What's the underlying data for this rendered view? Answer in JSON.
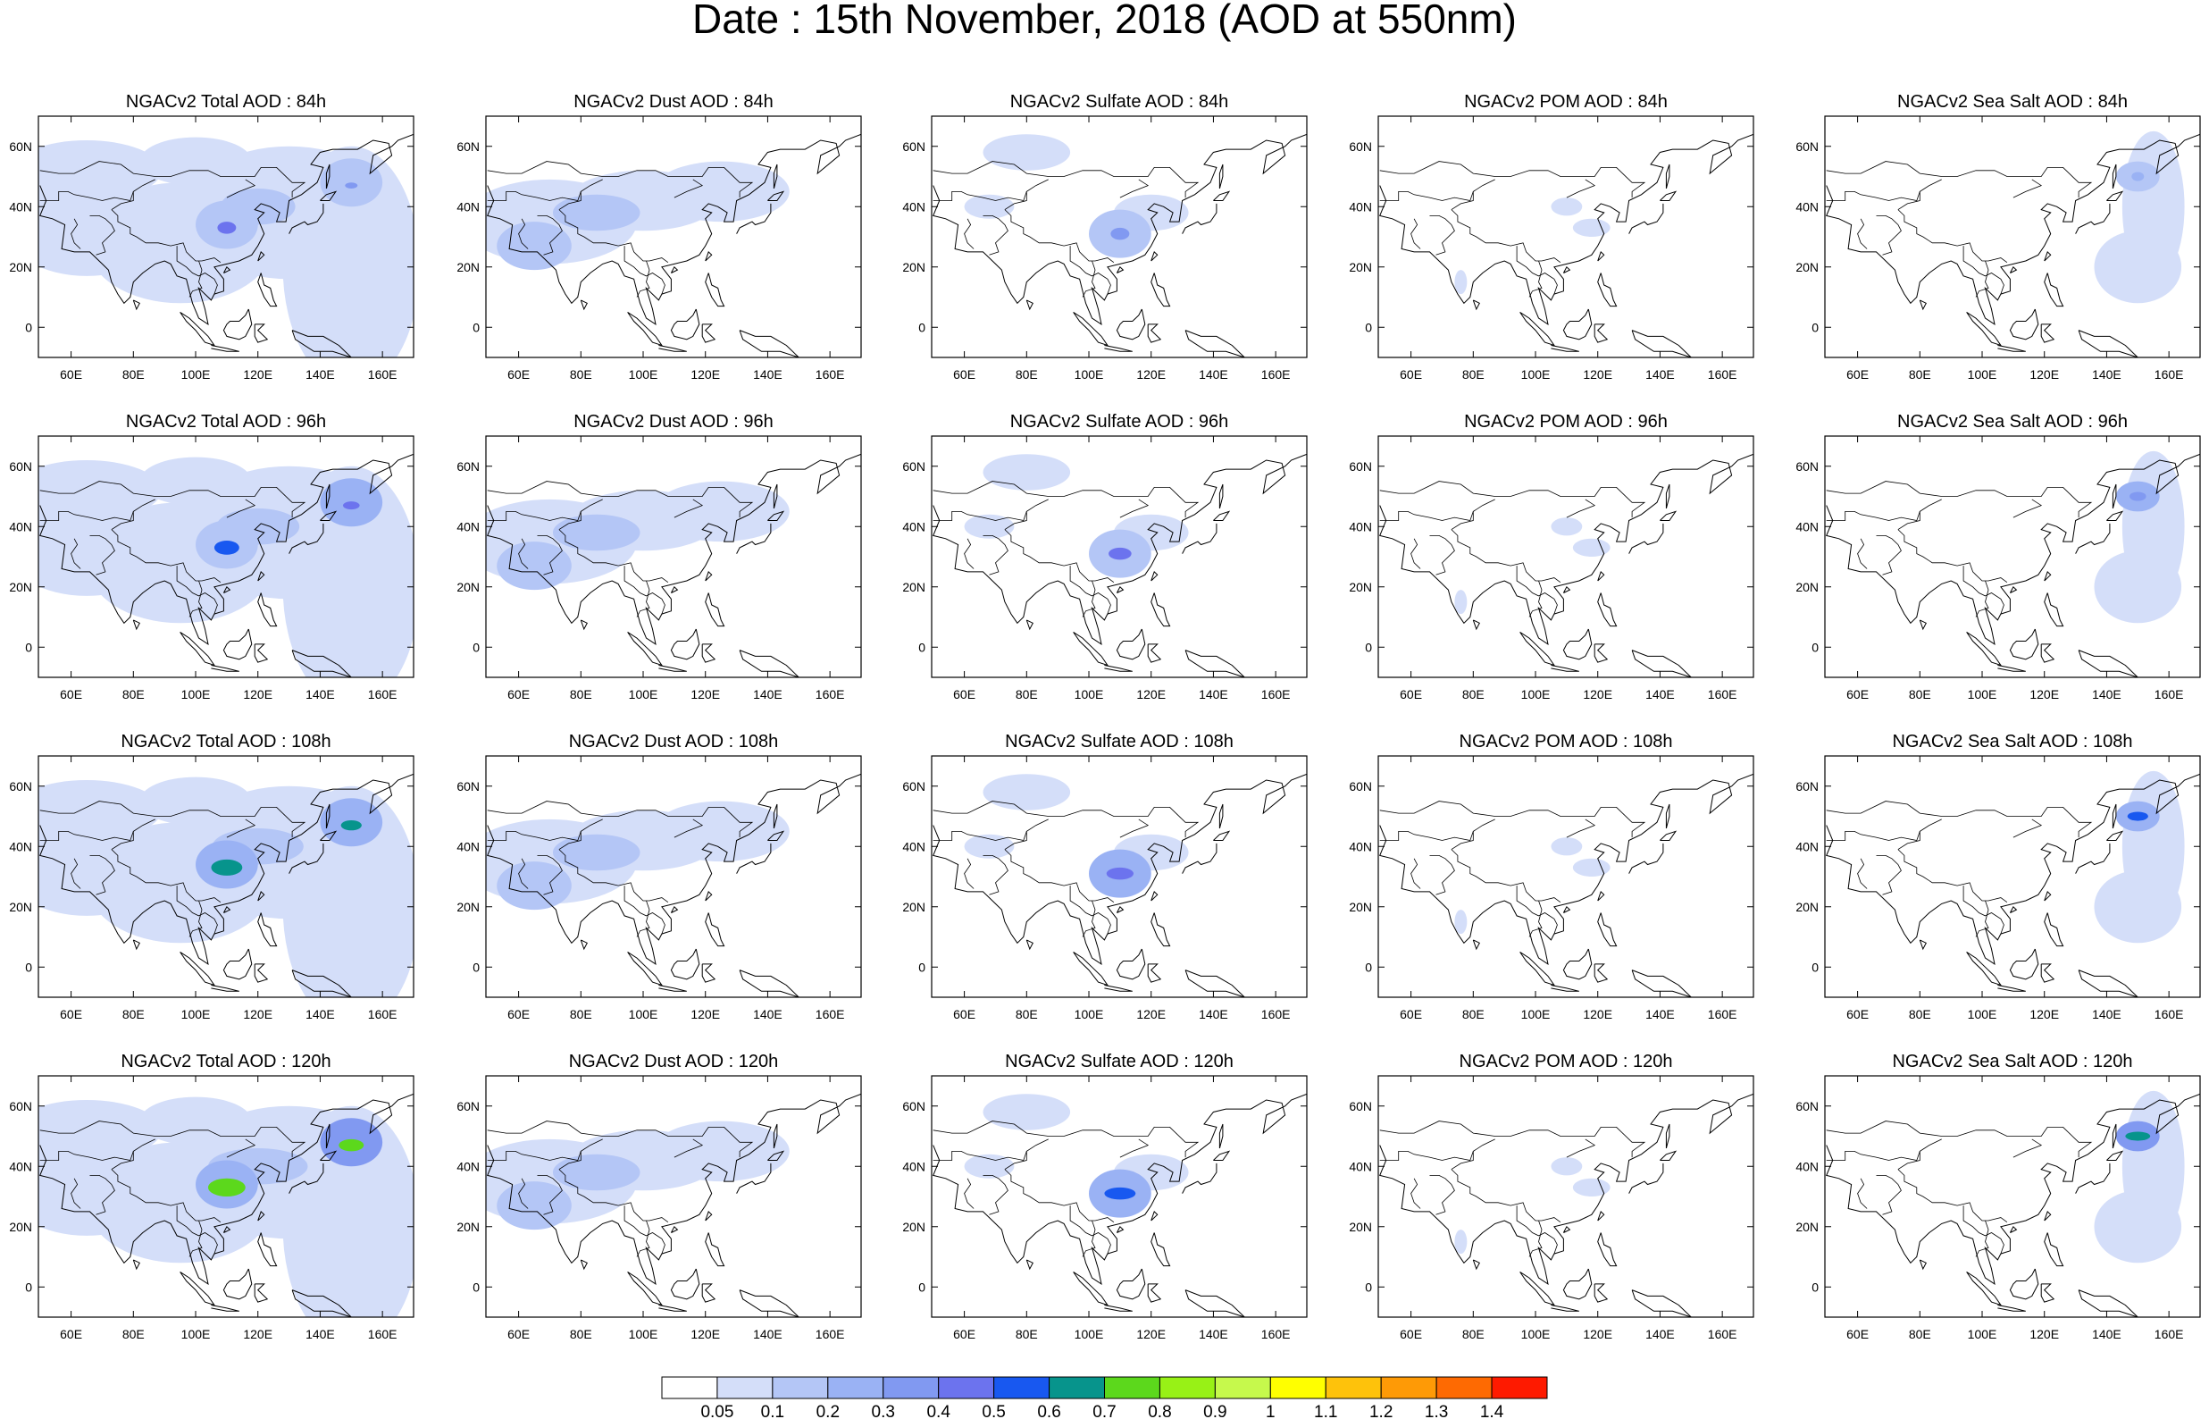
{
  "title": "Date : 15th November, 2018 (AOD at 550nm)",
  "lon_ticks": [
    "60E",
    "80E",
    "100E",
    "120E",
    "140E",
    "160E"
  ],
  "lat_ticks": [
    "60N",
    "40N",
    "20N",
    "0"
  ],
  "panels": [
    [
      {
        "title": "NGACv2 Total AOD : 84h",
        "field": "total",
        "time": 84
      },
      {
        "title": "NGACv2 Dust AOD : 84h",
        "field": "dust",
        "time": 84
      },
      {
        "title": "NGACv2 Sulfate AOD : 84h",
        "field": "sulfate",
        "time": 84
      },
      {
        "title": "NGACv2 POM AOD : 84h",
        "field": "pom",
        "time": 84
      },
      {
        "title": "NGACv2 Sea Salt AOD : 84h",
        "field": "seasalt",
        "time": 84
      }
    ],
    [
      {
        "title": "NGACv2 Total AOD : 96h",
        "field": "total",
        "time": 96
      },
      {
        "title": "NGACv2 Dust AOD : 96h",
        "field": "dust",
        "time": 96
      },
      {
        "title": "NGACv2 Sulfate AOD : 96h",
        "field": "sulfate",
        "time": 96
      },
      {
        "title": "NGACv2 POM AOD : 96h",
        "field": "pom",
        "time": 96
      },
      {
        "title": "NGACv2 Sea Salt AOD : 96h",
        "field": "seasalt",
        "time": 96
      }
    ],
    [
      {
        "title": "NGACv2 Total AOD : 108h",
        "field": "total",
        "time": 108
      },
      {
        "title": "NGACv2 Dust AOD : 108h",
        "field": "dust",
        "time": 108
      },
      {
        "title": "NGACv2 Sulfate AOD : 108h",
        "field": "sulfate",
        "time": 108
      },
      {
        "title": "NGACv2 POM AOD : 108h",
        "field": "pom",
        "time": 108
      },
      {
        "title": "NGACv2 Sea Salt AOD : 108h",
        "field": "seasalt",
        "time": 108
      }
    ],
    [
      {
        "title": "NGACv2 Total AOD : 120h",
        "field": "total",
        "time": 120
      },
      {
        "title": "NGACv2 Dust AOD : 120h",
        "field": "dust",
        "time": 120
      },
      {
        "title": "NGACv2 Sulfate AOD : 120h",
        "field": "sulfate",
        "time": 120
      },
      {
        "title": "NGACv2 POM AOD : 120h",
        "field": "pom",
        "time": 120
      },
      {
        "title": "NGACv2 Sea Salt  AOD : 120h",
        "field": "seasalt",
        "time": 120
      }
    ]
  ],
  "colorbar": {
    "labels": [
      "0.05",
      "0.1",
      "0.2",
      "0.3",
      "0.4",
      "0.5",
      "0.6",
      "0.7",
      "0.8",
      "0.9",
      "1",
      "1.1",
      "1.2",
      "1.3",
      "1.4"
    ],
    "colors": [
      "#ffffff",
      "#d4def9",
      "#b4c6f6",
      "#9ab2f4",
      "#8199f1",
      "#6c73ee",
      "#1858f0",
      "#07948c",
      "#5cd81c",
      "#98f116",
      "#c6f94c",
      "#ffff00",
      "#fec20b",
      "#fe9a06",
      "#fe6a02",
      "#fe1a00"
    ]
  }
}
